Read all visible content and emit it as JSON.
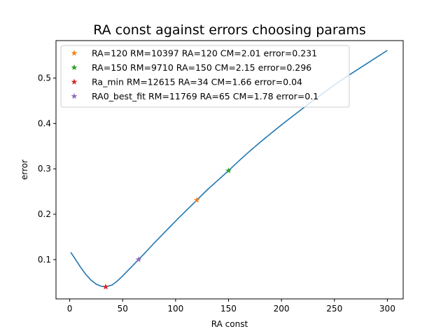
{
  "chart_data": {
    "type": "line",
    "title": "RA const against errors choosing params",
    "xlabel": "RA const",
    "ylabel": "error",
    "xlim": [
      -12.95,
      314.95
    ],
    "ylim": [
      0.0134,
      0.5826
    ],
    "xticks": [
      0,
      50,
      100,
      150,
      200,
      250,
      300
    ],
    "yticks": [
      0.1,
      0.2,
      0.3,
      0.4,
      0.5
    ],
    "grid": false,
    "legend_position": "top-left",
    "curve": {
      "color": "#1f77b4",
      "x": [
        1,
        5,
        10,
        15,
        20,
        25,
        30,
        34,
        40,
        45,
        50,
        55,
        60,
        65,
        70,
        80,
        90,
        100,
        110,
        120,
        130,
        140,
        150,
        160,
        170,
        180,
        190,
        200,
        210,
        220,
        230,
        240,
        250,
        260,
        270,
        280,
        290,
        300
      ],
      "y": [
        0.116,
        0.102,
        0.084,
        0.068,
        0.055,
        0.046,
        0.041,
        0.04,
        0.044,
        0.053,
        0.064,
        0.076,
        0.088,
        0.1,
        0.112,
        0.137,
        0.161,
        0.185,
        0.208,
        0.231,
        0.254,
        0.275,
        0.296,
        0.318,
        0.339,
        0.359,
        0.378,
        0.397,
        0.415,
        0.433,
        0.451,
        0.468,
        0.485,
        0.501,
        0.516,
        0.531,
        0.546,
        0.561
      ]
    },
    "markers": [
      {
        "label": "RA=120 RM=10397 RA=120 CM=2.01 error=0.231",
        "x": 120,
        "y": 0.231,
        "color": "#ff7f0e"
      },
      {
        "label": "RA=150 RM=9710 RA=150 CM=2.15 error=0.296",
        "x": 150,
        "y": 0.296,
        "color": "#2ca02c"
      },
      {
        "label": "Ra_min RM=12615 RA=34 CM=1.66 error=0.04",
        "x": 34,
        "y": 0.04,
        "color": "#d62728"
      },
      {
        "label": "RA0_best_fit RM=11769 RA=65 CM=1.78 error=0.1",
        "x": 65,
        "y": 0.1,
        "color": "#9467bd"
      }
    ]
  }
}
